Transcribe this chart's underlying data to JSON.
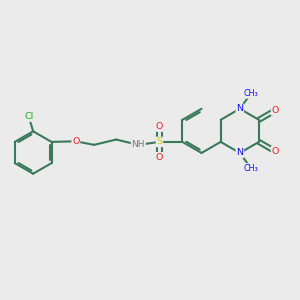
{
  "background_color": "#ebebeb",
  "bond_color": "#3a7a5a",
  "atom_colors": {
    "N": "#1010ee",
    "O": "#ee2222",
    "S": "#cccc00",
    "Cl": "#22aa22",
    "C": "#222222",
    "H": "#888888"
  },
  "figsize": [
    3.0,
    3.0
  ],
  "dpi": 100,
  "xlim": [
    0,
    10
  ],
  "ylim": [
    0,
    10
  ]
}
